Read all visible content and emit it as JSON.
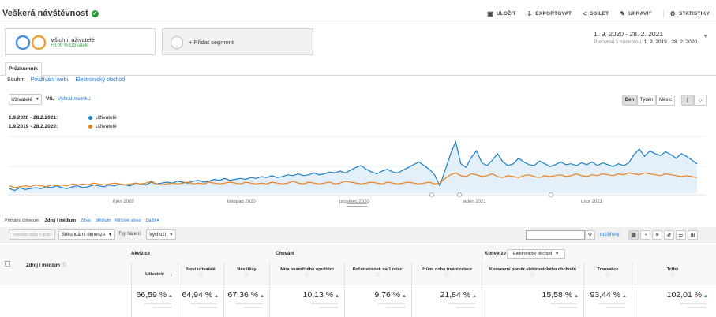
{
  "header": {
    "title": "Veškerá návštěvnost",
    "actions": [
      {
        "label": "ULOŽIT",
        "icon": "save-icon"
      },
      {
        "label": "EXPORTOVAT",
        "icon": "export-icon"
      },
      {
        "label": "SDÍLET",
        "icon": "share-icon"
      },
      {
        "label": "UPRAVIT",
        "icon": "edit-icon"
      },
      {
        "label": "STATISTIKY",
        "icon": "insights-icon"
      }
    ]
  },
  "segments": {
    "seg1_label": "Všichni uživatelé",
    "seg1_sub": "+0,00 % Uživatelé",
    "add_label": "+ Přidat segment"
  },
  "daterange": {
    "primary": "1. 9. 2020 - 28. 2. 2021",
    "compare_prefix": "Porovnat s hodnotou:",
    "compare": "1. 9. 2019 - 28. 2. 2020"
  },
  "tabs": {
    "main": "Průzkumník",
    "sub": [
      "Souhrn",
      "Používání webu",
      "Elektronický obchod"
    ]
  },
  "metric": {
    "select": "Uživatelé",
    "vs": "VS.",
    "pick": "Vybrat metriku",
    "granularity": [
      "Den",
      "Týden",
      "Měsíc"
    ]
  },
  "legend": [
    {
      "range": "1.9.2020 - 28.2.2021:",
      "name": "Uživatelé",
      "color": "#1f7fc3"
    },
    {
      "range": "1.9.2019 - 28.2.2020:",
      "name": "Uživatelé",
      "color": "#e8801e"
    }
  ],
  "chart_data": {
    "type": "line",
    "x_labels": [
      "říjen 2020",
      "listopad 2020",
      "prosinec 2020",
      "leden 2021",
      "únor 2021"
    ],
    "series": [
      {
        "name": "Uživatelé",
        "color": "#1f7fc3",
        "values": [
          0.5,
          0.3,
          0.6,
          0.4,
          0.5,
          0.6,
          0.5,
          0.7,
          0.6,
          0.8,
          0.6,
          0.5,
          0.7,
          0.8,
          0.6,
          0.7,
          0.9,
          0.8,
          0.7,
          0.9,
          0.8,
          1.0,
          0.9,
          0.8,
          1.1,
          1.0,
          0.9,
          1.2,
          1.0,
          1.1,
          1.2,
          1.1,
          1.3,
          1.2,
          1.1,
          1.3,
          1.4,
          1.2,
          1.3,
          1.5,
          1.4,
          1.6,
          1.4,
          1.5,
          1.6,
          1.5,
          1.7,
          1.6,
          1.8,
          1.7,
          1.9,
          1.7,
          1.8,
          2.0,
          1.9,
          2.1,
          1.9,
          2.0,
          2.2,
          2.0,
          2.1,
          2.3,
          2.2,
          2.4,
          2.2,
          2.5,
          2.8,
          3.0,
          2.6,
          2.3,
          2.1,
          2.4,
          2.6,
          2.3,
          2.2,
          2.5,
          2.8,
          3.1,
          3.4,
          3.0,
          2.6,
          2.0,
          0.8,
          2.5,
          4.2,
          5.6,
          3.2,
          2.8,
          3.9,
          4.6,
          3.3,
          3.0,
          3.6,
          4.3,
          3.4,
          3.0,
          3.2,
          3.8,
          3.4,
          3.1,
          3.0,
          3.5,
          3.2,
          2.9,
          3.1,
          3.4,
          3.1,
          3.2,
          3.0,
          3.3,
          3.1,
          3.4,
          3.0,
          3.3,
          3.1,
          2.9,
          3.2,
          3.0,
          3.3,
          4.2,
          4.8,
          4.0,
          4.6,
          4.3,
          4.1,
          4.5,
          4.2,
          3.8,
          4.3,
          4.0,
          3.6,
          3.2
        ]
      },
      {
        "name": "Uživatelé",
        "color": "#e8801e",
        "values": [
          0.8,
          0.6,
          0.7,
          0.8,
          0.7,
          0.9,
          0.8,
          0.7,
          0.9,
          0.8,
          0.9,
          0.8,
          1.0,
          0.9,
          1.0,
          0.9,
          1.1,
          1.0,
          0.9,
          1.0,
          1.1,
          1.0,
          0.9,
          1.0,
          1.1,
          1.0,
          1.1,
          1.3,
          1.0,
          0.9,
          1.0,
          1.1,
          1.0,
          1.1,
          1.2,
          1.0,
          1.1,
          1.0,
          1.2,
          1.1,
          1.0,
          1.1,
          1.2,
          1.1,
          1.0,
          1.2,
          1.1,
          1.0,
          1.1,
          1.0,
          1.2,
          1.1,
          1.0,
          1.1,
          1.3,
          1.1,
          1.0,
          1.2,
          1.1,
          1.0,
          1.1,
          1.2,
          1.0,
          1.1,
          1.3,
          1.2,
          1.1,
          1.0,
          1.1,
          1.2,
          1.1,
          1.0,
          1.2,
          1.1,
          1.0,
          1.1,
          1.2,
          1.1,
          1.0,
          1.1,
          1.2,
          1.0,
          1.1,
          1.6,
          2.0,
          2.2,
          1.9,
          1.8,
          2.1,
          2.0,
          1.8,
          1.9,
          2.1,
          1.8,
          1.7,
          1.9,
          1.8,
          1.7,
          1.9,
          2.0,
          1.8,
          1.7,
          1.9,
          1.8,
          1.9,
          2.0,
          1.8,
          1.9,
          2.1,
          1.9,
          1.8,
          2.0,
          1.9,
          2.1,
          2.0,
          1.9,
          2.1,
          2.0,
          2.2,
          2.1,
          2.0,
          2.2,
          2.1,
          2.0,
          1.9,
          2.1,
          2.0,
          1.9,
          1.8,
          1.9,
          1.8,
          1.7
        ]
      }
    ]
  },
  "dims": {
    "label": "Primární dimenze:",
    "active": "Zdroj / médium",
    "links": [
      "Zdroj",
      "Médium",
      "Klíčové slovo",
      "Další"
    ]
  },
  "filters": {
    "plot_rows": "Vykreslit řádky v grafu",
    "secondary": "Sekundární dimenze",
    "sort_label": "Typ řazení:",
    "sort_value": "Výchozí",
    "advanced": "rozšířený"
  },
  "table": {
    "dimension": "Zdroj / médium",
    "groups": {
      "acq": "Akvizice",
      "beh": "Chování",
      "conv": "Konverze",
      "conv_select": "Elektronický obchod"
    },
    "columns": [
      "Uživatelé",
      "Noví uživatelé",
      "Návštěvy",
      "Míra okamžitého opuštění",
      "Počet stránek na 1 relaci",
      "Prům. doba trvání relace",
      "Konverzní poměr elektronického obchodu",
      "Transakce",
      "Tržby"
    ],
    "totals": [
      "66,59 %",
      "64,94 %",
      "67,36 %",
      "10,13 %",
      "9,76 %",
      "21,84 %",
      "15,58 %",
      "93,44 %",
      "102,01 %"
    ]
  }
}
